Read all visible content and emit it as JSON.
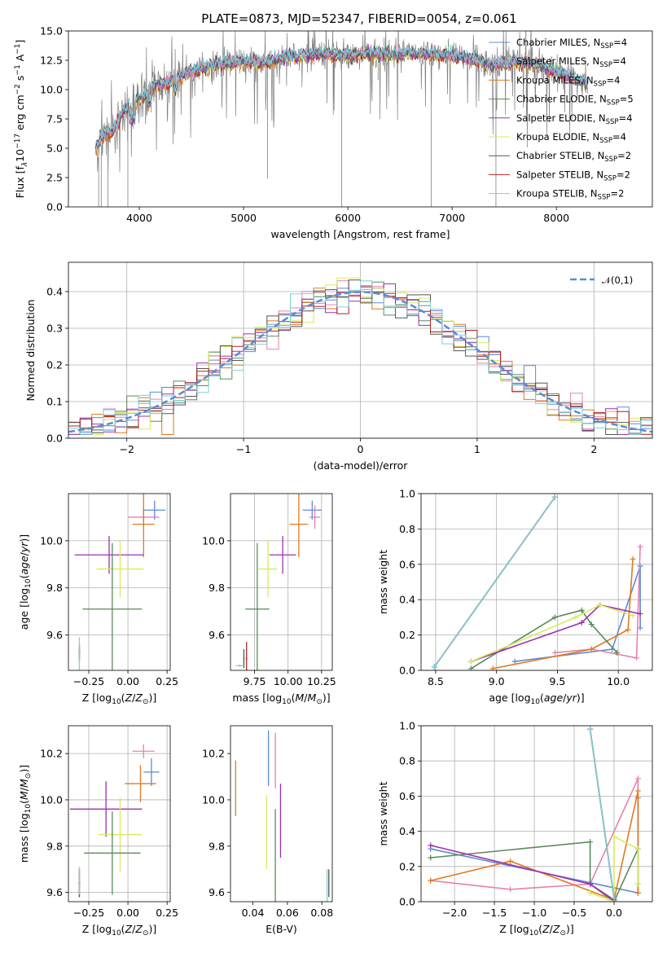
{
  "title": "PLATE=0873, MJD=52347, FIBERID=0054, z=0.061",
  "colors": {
    "chabrier_miles": "#5b8bd9",
    "salpeter_miles": "#e680b0",
    "kroupa_miles": "#e07a20",
    "chabrier_elodie": "#5a8a5a",
    "salpeter_elodie": "#9b30b0",
    "kroupa_elodie": "#d6ec5c",
    "chabrier_stelib": "#555555",
    "salpeter_stelib": "#b22222",
    "kroupa_stelib": "#7dd0d6",
    "data": "#808080",
    "normal": "#5b8bd9"
  },
  "chart_data": [
    {
      "id": "spectrum",
      "type": "line",
      "title": "PLATE=0873, MJD=52347, FIBERID=0054, z=0.061",
      "xlabel": "wavelength [Angstrom, rest frame]",
      "ylabel": "Flux [f_λ 10^-17 erg cm^-2 s^-1 A^-1]",
      "xlim": [
        3320,
        8920
      ],
      "ylim": [
        0,
        15
      ],
      "xticks": [
        4000,
        5000,
        6000,
        7000,
        8000
      ],
      "yticks": [
        0.0,
        2.5,
        5.0,
        7.5,
        10.0,
        12.5,
        15.0
      ],
      "legend_position": "upper right",
      "legend": [
        {
          "label": "Chabrier MILES, N",
          "sub": "SSP",
          "suffix": "=4",
          "color": "chabrier_miles"
        },
        {
          "label": "Salpeter MILES, N",
          "sub": "SSP",
          "suffix": "=4",
          "color": "salpeter_miles"
        },
        {
          "label": "Kroupa MILES, N",
          "sub": "SSP",
          "suffix": "=4",
          "color": "kroupa_miles"
        },
        {
          "label": "Chabrier ELODIE, N",
          "sub": "SSP",
          "suffix": "=5",
          "color": "chabrier_elodie"
        },
        {
          "label": "Salpeter ELODIE, N",
          "sub": "SSP",
          "suffix": "=4",
          "color": "salpeter_elodie"
        },
        {
          "label": "Kroupa ELODIE, N",
          "sub": "SSP",
          "suffix": "=4",
          "color": "kroupa_elodie"
        },
        {
          "label": "Chabrier STELIB, N",
          "sub": "SSP",
          "suffix": "=2",
          "color": "chabrier_stelib"
        },
        {
          "label": "Salpeter STELIB, N",
          "sub": "SSP",
          "suffix": "=2",
          "color": "salpeter_stelib"
        },
        {
          "label": "Kroupa STELIB, N",
          "sub": "SSP",
          "suffix": "=2",
          "color": "kroupa_stelib"
        }
      ],
      "continuum": [
        [
          3580,
          5.0
        ],
        [
          3650,
          6.0
        ],
        [
          3750,
          6.5
        ],
        [
          3850,
          8.3
        ],
        [
          3950,
          9.0
        ],
        [
          4050,
          9.5
        ],
        [
          4150,
          10.4
        ],
        [
          4300,
          10.7
        ],
        [
          4400,
          11.2
        ],
        [
          4600,
          11.8
        ],
        [
          4800,
          12.2
        ],
        [
          5000,
          12.4
        ],
        [
          5200,
          12.3
        ],
        [
          5400,
          12.8
        ],
        [
          5600,
          12.9
        ],
        [
          5800,
          13.1
        ],
        [
          6000,
          12.8
        ],
        [
          6200,
          13.1
        ],
        [
          6400,
          13.0
        ],
        [
          6600,
          13.1
        ],
        [
          6800,
          13.0
        ],
        [
          7000,
          12.9
        ],
        [
          7200,
          12.6
        ],
        [
          7400,
          12.1
        ],
        [
          7600,
          12.4
        ],
        [
          7800,
          12.1
        ],
        [
          8000,
          11.6
        ],
        [
          8200,
          10.8
        ],
        [
          8300,
          10.5
        ]
      ],
      "data_spikes": [
        [
          3610,
          0
        ],
        [
          3635,
          0
        ],
        [
          3700,
          0
        ],
        [
          3890,
          0
        ],
        [
          5230,
          2.4
        ],
        [
          5940,
          0
        ],
        [
          6290,
          10.8
        ],
        [
          6800,
          0
        ],
        [
          7420,
          0
        ]
      ]
    },
    {
      "id": "residuals",
      "type": "line",
      "xlabel": "(data-model)/error",
      "ylabel": "Normed distribution",
      "xlim": [
        -2.5,
        2.5
      ],
      "ylim": [
        0,
        0.48
      ],
      "xticks": [
        -2,
        -1,
        0,
        1,
        2
      ],
      "yticks": [
        0.0,
        0.1,
        0.2,
        0.3,
        0.4
      ],
      "grid": true,
      "legend_position": "upper right",
      "legend": [
        {
          "label": "𝒩(0,1)",
          "color": "normal"
        }
      ],
      "bin_width": 0.1
    },
    {
      "id": "age_vs_Z",
      "type": "scatter",
      "xlabel": "Z [log10(Z/Z☉)]",
      "ylabel": "age [log10(age/yr)]",
      "xlim": [
        -0.38,
        0.27
      ],
      "ylim": [
        9.45,
        10.2
      ],
      "xticks": [
        -0.25,
        0.0,
        0.25
      ],
      "yticks": [
        9.6,
        9.8,
        10.0
      ],
      "grid": true,
      "points": [
        {
          "series": "chabrier_miles",
          "x": 0.17,
          "y": 10.13,
          "xerr": 0.07,
          "yerr": 0.04
        },
        {
          "series": "salpeter_miles",
          "x": 0.1,
          "y": 10.1,
          "xerr": 0.1,
          "yerr": 0.04
        },
        {
          "series": "kroupa_miles",
          "x": 0.1,
          "y": 10.07,
          "xerr": 0.07,
          "yerr": 0.14
        },
        {
          "series": "salpeter_elodie",
          "x": -0.12,
          "y": 9.94,
          "xerr": 0.22,
          "yerr": 0.08
        },
        {
          "series": "kroupa_elodie",
          "x": -0.05,
          "y": 9.88,
          "xerr": 0.15,
          "yerr": 0.12
        },
        {
          "series": "chabrier_elodie",
          "x": -0.1,
          "y": 9.71,
          "xerr": 0.19,
          "yerr": 0.28
        },
        {
          "series": "chabrier_stelib",
          "x": -0.31,
          "y": 9.52,
          "xerr": 0.005,
          "yerr": 0.03
        },
        {
          "series": "salpeter_stelib",
          "x": -0.31,
          "y": 9.53,
          "xerr": 0.005,
          "yerr": 0.03
        },
        {
          "series": "kroupa_stelib",
          "x": -0.31,
          "y": 9.52,
          "xerr": 0.005,
          "yerr": 0.07
        }
      ]
    },
    {
      "id": "age_vs_mass",
      "type": "scatter",
      "xlabel": "mass [log10(M/M☉)]",
      "ylabel": "",
      "xlim": [
        9.57,
        10.33
      ],
      "ylim": [
        9.45,
        10.2
      ],
      "xticks": [
        9.75,
        10.0,
        10.25
      ],
      "yticks": [
        9.6,
        9.8,
        10.0
      ],
      "grid": true,
      "points": [
        {
          "series": "chabrier_miles",
          "x": 10.18,
          "y": 10.13,
          "xerr": 0.07,
          "yerr": 0.04
        },
        {
          "series": "salpeter_miles",
          "x": 10.2,
          "y": 10.1,
          "xerr": 0.04,
          "yerr": 0.05
        },
        {
          "series": "kroupa_miles",
          "x": 10.08,
          "y": 10.07,
          "xerr": 0.07,
          "yerr": 0.14
        },
        {
          "series": "salpeter_elodie",
          "x": 9.96,
          "y": 9.94,
          "xerr": 0.1,
          "yerr": 0.08
        },
        {
          "series": "kroupa_elodie",
          "x": 9.85,
          "y": 9.88,
          "xerr": 0.07,
          "yerr": 0.12
        },
        {
          "series": "chabrier_elodie",
          "x": 9.77,
          "y": 9.71,
          "xerr": 0.09,
          "yerr": 0.28
        },
        {
          "series": "chabrier_stelib",
          "x": 9.67,
          "y": 9.5,
          "xerr": 0.005,
          "yerr": 0.04
        },
        {
          "series": "salpeter_stelib",
          "x": 9.69,
          "y": 9.5,
          "xerr": 0.005,
          "yerr": 0.07
        },
        {
          "series": "kroupa_stelib",
          "x": 9.64,
          "y": 9.47,
          "xerr": 0.03,
          "yerr": 0.005
        }
      ]
    },
    {
      "id": "mass_weight_vs_age",
      "type": "line",
      "xlabel": "age [log10(age/yr)]",
      "ylabel": "mass weight",
      "xlim": [
        8.38,
        10.28
      ],
      "ylim": [
        0,
        1.0
      ],
      "xticks": [
        8.5,
        9.0,
        9.5,
        10.0
      ],
      "yticks": [
        0.0,
        0.2,
        0.4,
        0.6,
        0.8,
        1.0
      ],
      "grid": true,
      "series": [
        {
          "name": "chabrier_miles",
          "x": [
            9.15,
            9.95,
            10.18,
            10.18
          ],
          "y": [
            0.05,
            0.12,
            0.59,
            0.24
          ]
        },
        {
          "name": "salpeter_miles",
          "x": [
            9.48,
            9.78,
            10.15,
            10.18
          ],
          "y": [
            0.1,
            0.12,
            0.07,
            0.7
          ]
        },
        {
          "name": "kroupa_miles",
          "x": [
            8.97,
            9.78,
            10.08,
            10.12
          ],
          "y": [
            0.01,
            0.12,
            0.23,
            0.63
          ]
        },
        {
          "name": "chabrier_elodie",
          "x": [
            8.79,
            9.48,
            9.7,
            9.78,
            9.99
          ],
          "y": [
            0.01,
            0.3,
            0.34,
            0.26,
            0.1
          ]
        },
        {
          "name": "salpeter_elodie",
          "x": [
            8.79,
            9.7,
            9.85,
            10.18
          ],
          "y": [
            0.05,
            0.27,
            0.37,
            0.32
          ]
        },
        {
          "name": "kroupa_elodie",
          "x": [
            8.79,
            9.65,
            9.85,
            10.12
          ],
          "y": [
            0.05,
            0.3,
            0.37,
            0.31
          ]
        },
        {
          "name": "chabrier_stelib",
          "x": [
            8.49,
            9.48
          ],
          "y": [
            0.02,
            0.98
          ]
        },
        {
          "name": "salpeter_stelib",
          "x": [
            8.49,
            9.48
          ],
          "y": [
            0.02,
            0.98
          ]
        },
        {
          "name": "kroupa_stelib",
          "x": [
            8.49,
            9.48
          ],
          "y": [
            0.02,
            0.98
          ]
        }
      ]
    },
    {
      "id": "mass_vs_Z",
      "type": "scatter",
      "xlabel": "Z [log10(Z/Z☉)]",
      "ylabel": "mass [log10(M/M☉)]",
      "xlim": [
        -0.38,
        0.27
      ],
      "ylim": [
        9.56,
        10.32
      ],
      "xticks": [
        -0.25,
        0.0,
        0.25
      ],
      "yticks": [
        9.6,
        9.8,
        10.0,
        10.2
      ],
      "grid": true,
      "points": [
        {
          "series": "salpeter_miles",
          "x": 0.1,
          "y": 10.21,
          "xerr": 0.07,
          "yerr": 0.03
        },
        {
          "series": "chabrier_miles",
          "x": 0.15,
          "y": 10.12,
          "xerr": 0.05,
          "yerr": 0.06
        },
        {
          "series": "kroupa_miles",
          "x": 0.08,
          "y": 10.07,
          "xerr": 0.1,
          "yerr": 0.08
        },
        {
          "series": "salpeter_elodie",
          "x": -0.14,
          "y": 9.96,
          "xerr": 0.23,
          "yerr": 0.12
        },
        {
          "series": "kroupa_elodie",
          "x": -0.05,
          "y": 9.85,
          "xerr": 0.14,
          "yerr": 0.16
        },
        {
          "series": "chabrier_elodie",
          "x": -0.1,
          "y": 9.77,
          "xerr": 0.18,
          "yerr": 0.18
        },
        {
          "series": "chabrier_stelib",
          "x": -0.31,
          "y": 9.64,
          "xerr": 0.005,
          "yerr": 0.06
        },
        {
          "series": "salpeter_stelib",
          "x": -0.31,
          "y": 9.64,
          "xerr": 0.005,
          "yerr": 0.06
        },
        {
          "series": "kroupa_stelib",
          "x": -0.31,
          "y": 9.65,
          "xerr": 0.005,
          "yerr": 0.06
        }
      ]
    },
    {
      "id": "mass_vs_ebv",
      "type": "scatter",
      "xlabel": "E(B-V)",
      "ylabel": "",
      "xlim": [
        0.027,
        0.086
      ],
      "ylim": [
        9.56,
        10.32
      ],
      "xticks": [
        0.04,
        0.06,
        0.08
      ],
      "yticks": [
        9.6,
        9.8,
        10.0,
        10.2
      ],
      "grid": false,
      "points": [
        {
          "series": "kroupa_miles",
          "x": 0.03,
          "y": 10.05,
          "yerr": 0.12
        },
        {
          "series": "chabrier_miles",
          "x": 0.049,
          "y": 10.18,
          "yerr": 0.12
        },
        {
          "series": "salpeter_miles",
          "x": 0.053,
          "y": 10.17,
          "yerr": 0.12
        },
        {
          "series": "kroupa_elodie",
          "x": 0.048,
          "y": 9.86,
          "yerr": 0.16
        },
        {
          "series": "chabrier_elodie",
          "x": 0.053,
          "y": 9.76,
          "yerr": 0.2
        },
        {
          "series": "salpeter_elodie",
          "x": 0.056,
          "y": 9.91,
          "yerr": 0.16
        },
        {
          "series": "kroupa_stelib",
          "x": 0.083,
          "y": 9.63,
          "yerr": 0.07
        },
        {
          "series": "chabrier_stelib",
          "x": 0.084,
          "y": 9.64,
          "yerr": 0.06
        }
      ]
    },
    {
      "id": "mass_weight_vs_Z",
      "type": "line",
      "xlabel": "Z [log10(Z/Z☉)]",
      "ylabel": "mass weight",
      "xlim": [
        -2.42,
        0.48
      ],
      "ylim": [
        0,
        1.0
      ],
      "xticks": [
        -2.0,
        -1.5,
        -1.0,
        -0.5,
        0.0
      ],
      "yticks": [
        0.0,
        0.2,
        0.4,
        0.6,
        0.8,
        1.0
      ],
      "grid": true,
      "series": [
        {
          "name": "chabrier_miles",
          "x": [
            -2.3,
            0.3,
            0.3
          ],
          "y": [
            0.3,
            0.05,
            0.59
          ]
        },
        {
          "name": "salpeter_miles",
          "x": [
            -2.3,
            -1.3,
            -0.3,
            0.3,
            0.3
          ],
          "y": [
            0.12,
            0.07,
            0.1,
            0.7,
            0.05
          ]
        },
        {
          "name": "kroupa_miles",
          "x": [
            -2.3,
            -1.3,
            0.0,
            0.3,
            0.3
          ],
          "y": [
            0.12,
            0.23,
            0.01,
            0.63,
            0.05
          ]
        },
        {
          "name": "chabrier_elodie",
          "x": [
            -2.3,
            -0.3,
            -0.3,
            0.0,
            0.3,
            0.3
          ],
          "y": [
            0.25,
            0.34,
            0.1,
            0.0,
            0.3,
            0.1
          ]
        },
        {
          "name": "salpeter_elodie",
          "x": [
            -2.3,
            -0.3,
            0.0
          ],
          "y": [
            0.32,
            0.1,
            0.01
          ]
        },
        {
          "name": "kroupa_elodie",
          "x": [
            -0.3,
            0.0,
            0.0,
            0.3,
            0.3
          ],
          "y": [
            0.05,
            0.0,
            0.37,
            0.3,
            0.1
          ]
        },
        {
          "name": "chabrier_stelib",
          "x": [
            -0.3,
            0.0
          ],
          "y": [
            0.98,
            0.02
          ]
        },
        {
          "name": "salpeter_stelib",
          "x": [
            -0.3,
            0.0
          ],
          "y": [
            0.98,
            0.02
          ]
        },
        {
          "name": "kroupa_stelib",
          "x": [
            -0.3,
            0.0
          ],
          "y": [
            0.98,
            0.02
          ]
        }
      ]
    }
  ]
}
